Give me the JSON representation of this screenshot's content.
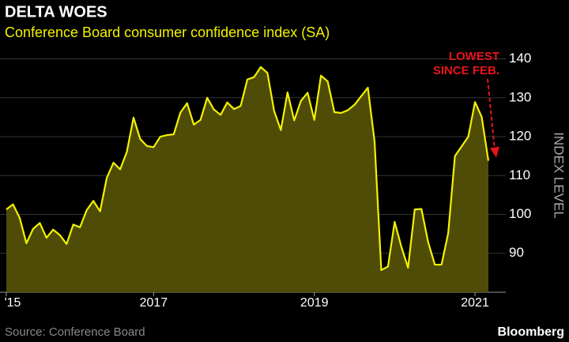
{
  "chart_data": {
    "type": "area",
    "title": "DELTA WOES",
    "subtitle": "Conference Board consumer confidence index (SA)",
    "y_axis_label": "INDEX LEVEL",
    "source": "Source: Conference Board",
    "brand": "Bloomberg",
    "annotation": [
      "LOWEST",
      "SINCE FEB."
    ],
    "categories": [
      "'15",
      null,
      null,
      null,
      null,
      null,
      null,
      null,
      null,
      null,
      null,
      null,
      null,
      null,
      null,
      null,
      null,
      null,
      null,
      null,
      null,
      null,
      "2017",
      null,
      null,
      null,
      null,
      null,
      null,
      null,
      null,
      null,
      null,
      null,
      null,
      null,
      null,
      null,
      null,
      null,
      null,
      null,
      null,
      null,
      null,
      null,
      "2019",
      null,
      null,
      null,
      null,
      null,
      null,
      null,
      null,
      null,
      null,
      null,
      null,
      null,
      null,
      null,
      null,
      null,
      null,
      null,
      null,
      null,
      null,
      null,
      "2021",
      null,
      null
    ],
    "series": [
      {
        "name": "Consumer confidence",
        "color": "#f2f200",
        "fill": "#4f4c08",
        "values": [
          101.3,
          102.6,
          99.1,
          92.6,
          96.3,
          97.8,
          94.0,
          96.1,
          94.7,
          92.4,
          97.4,
          96.7,
          101.1,
          103.5,
          100.8,
          109.4,
          113.3,
          111.6,
          116.1,
          124.9,
          119.4,
          117.6,
          117.3,
          120.0,
          120.4,
          120.6,
          126.2,
          128.6,
          123.1,
          124.3,
          130.0,
          127.0,
          125.6,
          128.8,
          127.1,
          127.9,
          134.7,
          135.3,
          137.9,
          136.4,
          126.6,
          121.7,
          131.4,
          124.2,
          129.2,
          131.3,
          124.3,
          135.7,
          134.2,
          126.3,
          126.1,
          126.8,
          128.2,
          130.4,
          132.6,
          118.8,
          85.7,
          86.6,
          98.1,
          91.7,
          86.3,
          101.3,
          101.4,
          92.9,
          87.1,
          87.1,
          95.2,
          115.0,
          117.5,
          120.0,
          128.9,
          125.1,
          113.8
        ]
      }
    ],
    "ylim": [
      80,
      146
    ],
    "yticks": [
      90,
      100,
      110,
      120,
      130,
      140
    ],
    "grid": true,
    "annotation_color": "#e8141b"
  }
}
